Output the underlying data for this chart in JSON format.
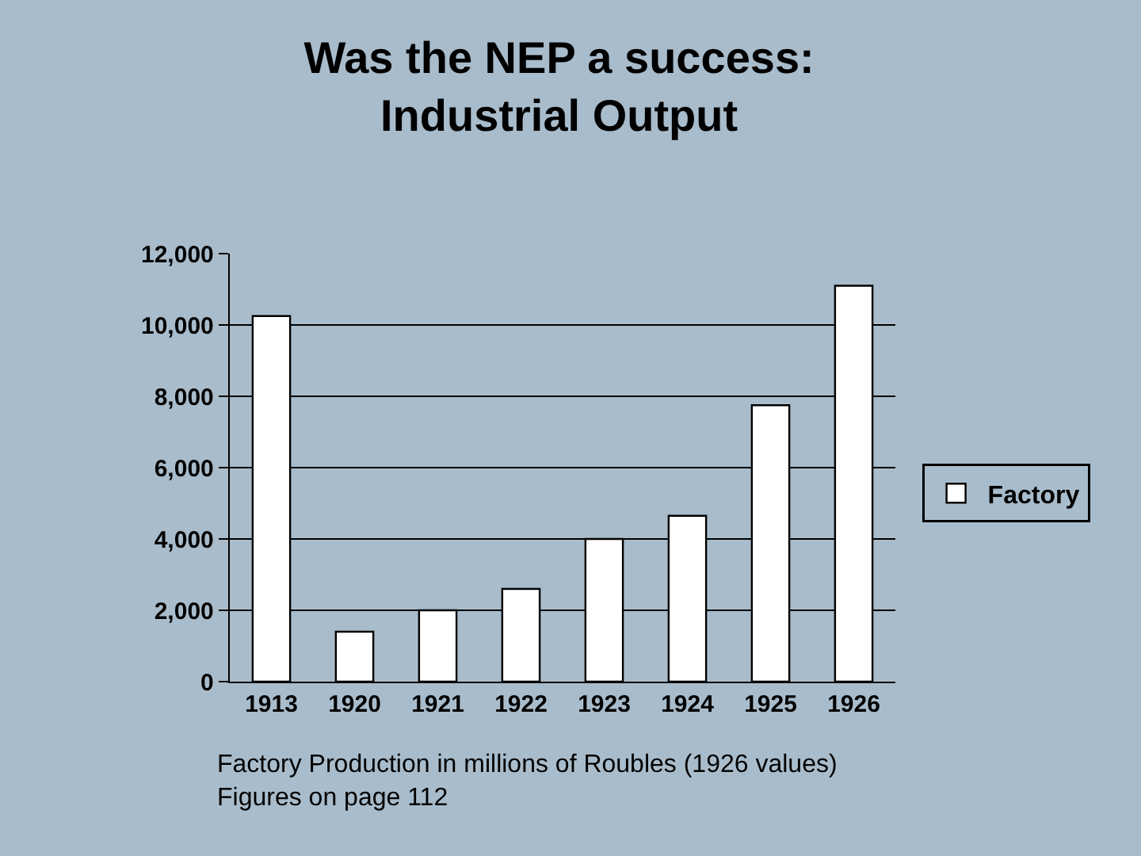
{
  "chart_data": {
    "type": "bar",
    "title": "Was the NEP a success:\nIndustrial Output",
    "categories": [
      "1913",
      "1920",
      "1921",
      "1922",
      "1923",
      "1924",
      "1925",
      "1926"
    ],
    "series": [
      {
        "name": "Factory",
        "color": "#ffffff",
        "values": [
          10250,
          1400,
          2000,
          2600,
          4000,
          4650,
          7750,
          11100
        ]
      }
    ],
    "ylim": [
      0,
      12000
    ],
    "yticks": [
      0,
      {
        "value": 2000,
        "label": "2,000"
      },
      {
        "value": 4000,
        "label": "4,000"
      },
      {
        "value": 6000,
        "label": "6,000"
      },
      {
        "value": 8000,
        "label": "8,000"
      },
      {
        "value": 10000,
        "label": "10,000"
      },
      {
        "value": 12000,
        "label": "12,000"
      }
    ],
    "grid": "y",
    "legend": "right",
    "annotations": [
      "Factory Production in millions of Roubles (1926 values)",
      "Figures on page 112"
    ]
  }
}
